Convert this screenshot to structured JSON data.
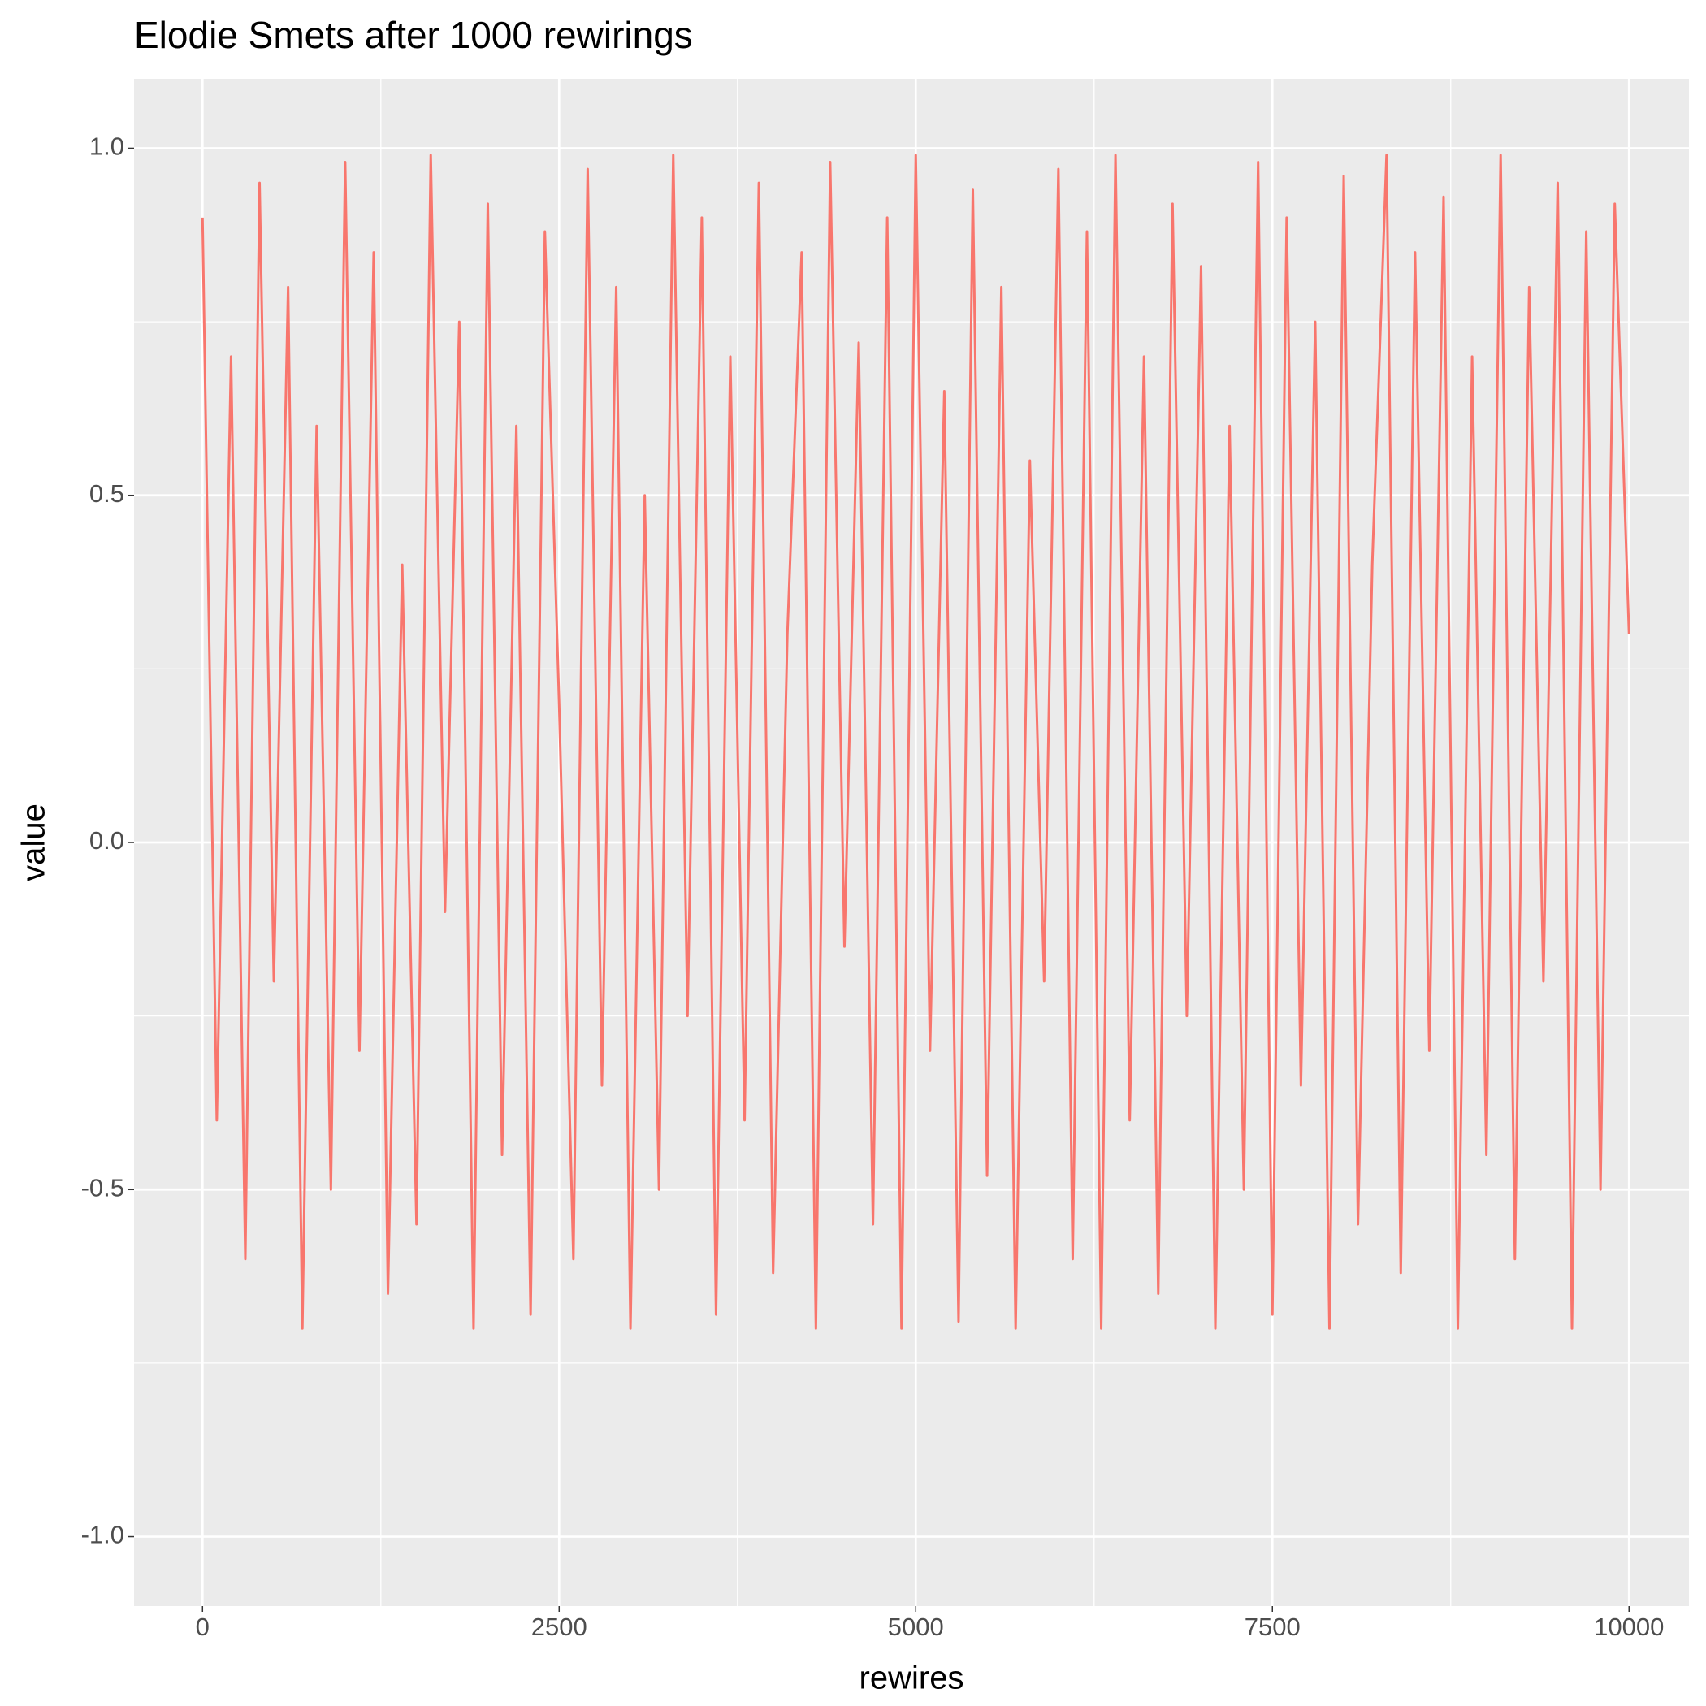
{
  "chart_data": {
    "type": "line",
    "title": "Elodie Smets after 1000 rewirings",
    "x_label": "rewires",
    "y_label": "value",
    "x": [
      0,
      100,
      200,
      300,
      400,
      500,
      600,
      700,
      800,
      900,
      1000,
      1100,
      1200,
      1300,
      1400,
      1500,
      1600,
      1700,
      1800,
      1900,
      2000,
      2100,
      2200,
      2300,
      2400,
      2500,
      2600,
      2700,
      2800,
      2900,
      3000,
      3100,
      3200,
      3300,
      3400,
      3500,
      3600,
      3700,
      3800,
      3900,
      4000,
      4100,
      4200,
      4300,
      4400,
      4500,
      4600,
      4700,
      4800,
      4900,
      5000,
      5100,
      5200,
      5300,
      5400,
      5500,
      5600,
      5700,
      5800,
      5900,
      6000,
      6100,
      6200,
      6300,
      6400,
      6500,
      6600,
      6700,
      6800,
      6900,
      7000,
      7100,
      7200,
      7300,
      7400,
      7500,
      7600,
      7700,
      7800,
      7900,
      8000,
      8100,
      8200,
      8300,
      8400,
      8500,
      8600,
      8700,
      8800,
      8900,
      9000,
      9100,
      9200,
      9300,
      9400,
      9500,
      9600,
      9700,
      9800,
      9900,
      10000
    ],
    "values": [
      0.9,
      -0.4,
      0.7,
      -0.6,
      0.95,
      -0.2,
      0.8,
      -0.7,
      0.6,
      -0.5,
      0.98,
      -0.3,
      0.85,
      -0.65,
      0.4,
      -0.55,
      0.99,
      -0.1,
      0.75,
      -0.7,
      0.92,
      -0.45,
      0.6,
      -0.68,
      0.88,
      0.2,
      -0.6,
      0.97,
      -0.35,
      0.8,
      -0.7,
      0.5,
      -0.5,
      0.99,
      -0.25,
      0.9,
      -0.68,
      0.7,
      -0.4,
      0.95,
      -0.62,
      0.3,
      0.85,
      -0.7,
      0.98,
      -0.15,
      0.72,
      -0.55,
      0.9,
      -0.7,
      0.99,
      -0.3,
      0.65,
      -0.69,
      0.94,
      -0.48,
      0.8,
      -0.7,
      0.55,
      -0.2,
      0.97,
      -0.6,
      0.88,
      -0.7,
      0.99,
      -0.4,
      0.7,
      -0.65,
      0.92,
      -0.25,
      0.83,
      -0.7,
      0.6,
      -0.5,
      0.98,
      -0.68,
      0.9,
      -0.35,
      0.75,
      -0.7,
      0.96,
      -0.55,
      0.4,
      0.99,
      -0.62,
      0.85,
      -0.3,
      0.93,
      -0.7,
      0.7,
      -0.45,
      0.99,
      -0.6,
      0.8,
      -0.2,
      0.95,
      -0.7,
      0.88,
      -0.5,
      0.92,
      0.3
    ],
    "color": "#f8766d",
    "xlim": [
      -480,
      10420
    ],
    "ylim": [
      -1.1,
      1.1
    ],
    "xticks": [
      0,
      2500,
      5000,
      7500,
      10000
    ],
    "yticks": [
      {
        "value": -1,
        "label": "-1.0"
      },
      {
        "value": -0.5,
        "label": "-0.5"
      },
      {
        "value": 0,
        "label": "0.0"
      },
      {
        "value": 0.5,
        "label": "0.5"
      },
      {
        "value": 1,
        "label": "1.0"
      }
    ],
    "grid": true
  }
}
